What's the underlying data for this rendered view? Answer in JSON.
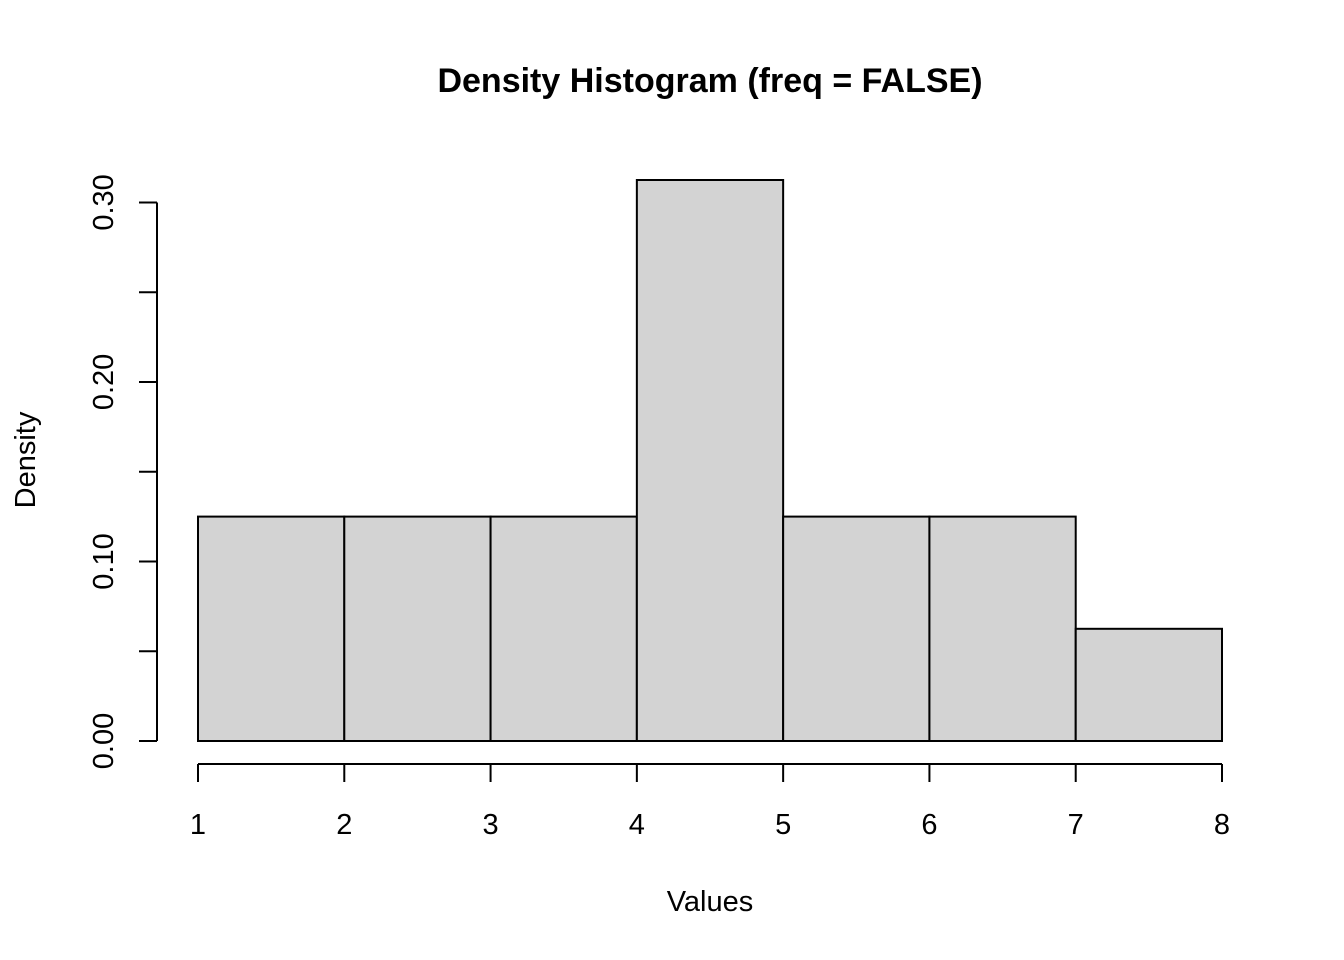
{
  "chart_data": {
    "type": "bar",
    "subtype": "histogram",
    "title": "Density Histogram (freq = FALSE)",
    "xlabel": "Values",
    "ylabel": "Density",
    "bins": [
      {
        "start": 1,
        "end": 2,
        "density": 0.125
      },
      {
        "start": 2,
        "end": 3,
        "density": 0.125
      },
      {
        "start": 3,
        "end": 4,
        "density": 0.125
      },
      {
        "start": 4,
        "end": 5,
        "density": 0.3125
      },
      {
        "start": 5,
        "end": 6,
        "density": 0.125
      },
      {
        "start": 6,
        "end": 7,
        "density": 0.125
      },
      {
        "start": 7,
        "end": 8,
        "density": 0.0625
      }
    ],
    "xlim": [
      1,
      8
    ],
    "ylim": [
      0,
      0.3125
    ],
    "x_ticks": [
      1,
      2,
      3,
      4,
      5,
      6,
      7,
      8
    ],
    "y_ticks": [
      0,
      0.05,
      0.1,
      0.15,
      0.2,
      0.25,
      0.3
    ],
    "y_tick_labels": [
      "0.00",
      "",
      "0.10",
      "",
      "0.20",
      "",
      "0.30"
    ],
    "x_tick_labels": [
      "1",
      "2",
      "3",
      "4",
      "5",
      "6",
      "7",
      "8"
    ],
    "grid": false,
    "legend": "none",
    "colors": {
      "bar_fill": "#d3d3d3",
      "bar_stroke": "#000000",
      "axis": "#000000",
      "text": "#000000",
      "background": "#ffffff"
    }
  }
}
